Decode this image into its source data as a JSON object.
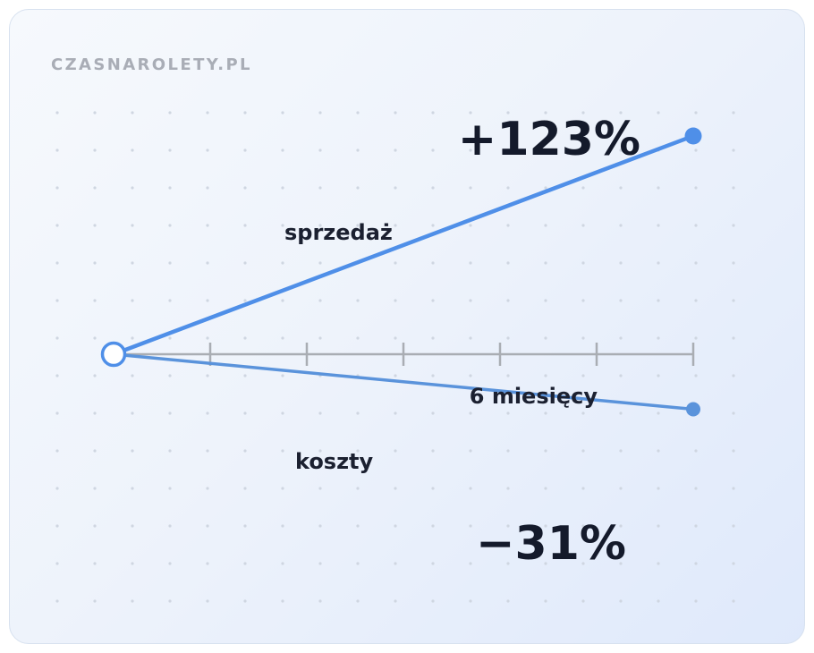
{
  "brand": "CZASNAROLETY.PL",
  "colors": {
    "sales": "#4f8fe8",
    "costs": "#5a93db",
    "axis": "#a9adb3",
    "dots": "#cfd6e1",
    "text": "#141a2b"
  },
  "chart_data": {
    "type": "line",
    "x": [
      0,
      6
    ],
    "xlabel": "6 miesięcy",
    "x_ticks": [
      0,
      1,
      2,
      3,
      4,
      5,
      6
    ],
    "ylim": [
      -40,
      130
    ],
    "grid": "dotted",
    "series": [
      {
        "name": "sprzedaż",
        "values": [
          0,
          123
        ],
        "label": "+123%",
        "key": "sales"
      },
      {
        "name": "koszty",
        "values": [
          0,
          -31
        ],
        "label": "−31%",
        "key": "costs"
      }
    ]
  }
}
